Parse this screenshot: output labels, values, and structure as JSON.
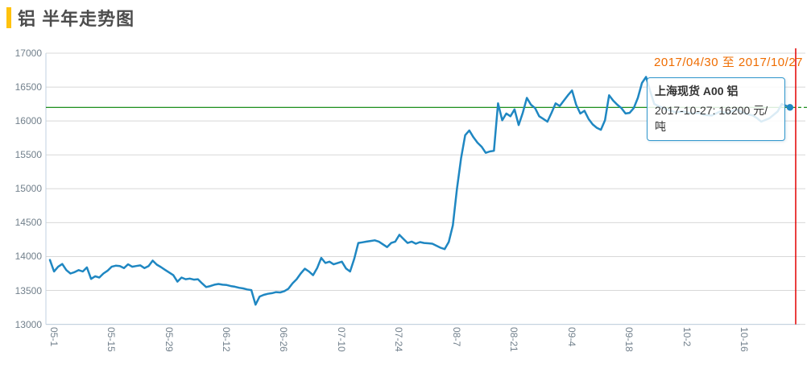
{
  "header": {
    "title": "铝 半年走势图",
    "accent_color": "#ffc20e"
  },
  "chart": {
    "date_range_label": "2017/04/30 至 2017/10/27",
    "tooltip": {
      "series_name": "上海现货 A00 铝",
      "value_line": "2017-10-27: 16200 元/吨"
    },
    "colors": {
      "line": "#1f87c2",
      "reference_line": "#008000",
      "cursor_line": "#e30000",
      "grid": "#d8d8d8",
      "axis": "#c0d0e0",
      "axis_text": "#72808c",
      "range_text": "#ef6c00",
      "tooltip_border": "#2f96cc",
      "title_text": "#4d4d4d"
    }
  },
  "chart_data": {
    "type": "line",
    "title": "铝 半年走势图",
    "series_name": "上海现货 A00 铝",
    "unit": "元/吨",
    "date_start": "2017-04-30",
    "date_end": "2017-10-27",
    "xlabel": "",
    "ylabel": "",
    "grid": true,
    "legend": false,
    "ylim": [
      13000,
      17000
    ],
    "yticks": [
      17000,
      16500,
      16000,
      15500,
      15000,
      14500,
      14000,
      13500,
      13000
    ],
    "xticks": [
      "05-1",
      "05-15",
      "05-29",
      "06-12",
      "06-26",
      "07-10",
      "07-24",
      "08-7",
      "08-21",
      "09-4",
      "09-18",
      "10-2",
      "10-16"
    ],
    "reference_value": 16200,
    "last_point": {
      "date": "2017-10-27",
      "value": 16200
    },
    "points": [
      [
        "04-30",
        13950
      ],
      [
        "05-01",
        13780
      ],
      [
        "05-02",
        13850
      ],
      [
        "05-03",
        13890
      ],
      [
        "05-04",
        13800
      ],
      [
        "05-05",
        13750
      ],
      [
        "05-06",
        13770
      ],
      [
        "05-07",
        13800
      ],
      [
        "05-08",
        13780
      ],
      [
        "05-09",
        13840
      ],
      [
        "05-10",
        13670
      ],
      [
        "05-11",
        13710
      ],
      [
        "05-12",
        13690
      ],
      [
        "05-13",
        13750
      ],
      [
        "05-14",
        13790
      ],
      [
        "05-15",
        13850
      ],
      [
        "05-16",
        13865
      ],
      [
        "05-17",
        13860
      ],
      [
        "05-18",
        13830
      ],
      [
        "05-19",
        13885
      ],
      [
        "05-20",
        13850
      ],
      [
        "05-21",
        13860
      ],
      [
        "05-22",
        13870
      ],
      [
        "05-23",
        13830
      ],
      [
        "05-24",
        13860
      ],
      [
        "05-25",
        13940
      ],
      [
        "05-26",
        13880
      ],
      [
        "05-27",
        13845
      ],
      [
        "05-28",
        13805
      ],
      [
        "05-29",
        13765
      ],
      [
        "05-30",
        13725
      ],
      [
        "05-31",
        13630
      ],
      [
        "06-01",
        13690
      ],
      [
        "06-02",
        13665
      ],
      [
        "06-03",
        13675
      ],
      [
        "06-04",
        13660
      ],
      [
        "06-05",
        13665
      ],
      [
        "06-06",
        13605
      ],
      [
        "06-07",
        13550
      ],
      [
        "06-08",
        13565
      ],
      [
        "06-09",
        13585
      ],
      [
        "06-10",
        13595
      ],
      [
        "06-11",
        13585
      ],
      [
        "06-12",
        13580
      ],
      [
        "06-13",
        13565
      ],
      [
        "06-14",
        13555
      ],
      [
        "06-15",
        13540
      ],
      [
        "06-16",
        13530
      ],
      [
        "06-17",
        13515
      ],
      [
        "06-18",
        13505
      ],
      [
        "06-19",
        13290
      ],
      [
        "06-20",
        13410
      ],
      [
        "06-21",
        13435
      ],
      [
        "06-22",
        13450
      ],
      [
        "06-23",
        13460
      ],
      [
        "06-24",
        13475
      ],
      [
        "06-25",
        13470
      ],
      [
        "06-26",
        13490
      ],
      [
        "06-27",
        13525
      ],
      [
        "06-28",
        13605
      ],
      [
        "06-29",
        13665
      ],
      [
        "06-30",
        13750
      ],
      [
        "07-01",
        13820
      ],
      [
        "07-02",
        13780
      ],
      [
        "07-03",
        13725
      ],
      [
        "07-04",
        13830
      ],
      [
        "07-05",
        13980
      ],
      [
        "07-06",
        13905
      ],
      [
        "07-07",
        13925
      ],
      [
        "07-08",
        13885
      ],
      [
        "07-09",
        13905
      ],
      [
        "07-10",
        13925
      ],
      [
        "07-11",
        13825
      ],
      [
        "07-12",
        13780
      ],
      [
        "07-13",
        13965
      ],
      [
        "07-14",
        14200
      ],
      [
        "07-15",
        14210
      ],
      [
        "07-16",
        14220
      ],
      [
        "07-17",
        14230
      ],
      [
        "07-18",
        14240
      ],
      [
        "07-19",
        14220
      ],
      [
        "07-20",
        14180
      ],
      [
        "07-21",
        14140
      ],
      [
        "07-22",
        14200
      ],
      [
        "07-23",
        14220
      ],
      [
        "07-24",
        14320
      ],
      [
        "07-25",
        14260
      ],
      [
        "07-26",
        14200
      ],
      [
        "07-27",
        14220
      ],
      [
        "07-28",
        14190
      ],
      [
        "07-29",
        14213
      ],
      [
        "07-30",
        14200
      ],
      [
        "07-31",
        14195
      ],
      [
        "08-01",
        14190
      ],
      [
        "08-02",
        14160
      ],
      [
        "08-03",
        14130
      ],
      [
        "08-04",
        14110
      ],
      [
        "08-05",
        14215
      ],
      [
        "08-06",
        14460
      ],
      [
        "08-07",
        15000
      ],
      [
        "08-08",
        15450
      ],
      [
        "08-09",
        15790
      ],
      [
        "08-10",
        15860
      ],
      [
        "08-11",
        15760
      ],
      [
        "08-12",
        15680
      ],
      [
        "08-13",
        15620
      ],
      [
        "08-14",
        15530
      ],
      [
        "08-15",
        15550
      ],
      [
        "08-16",
        15560
      ],
      [
        "08-17",
        16260
      ],
      [
        "08-18",
        16010
      ],
      [
        "08-19",
        16110
      ],
      [
        "08-20",
        16070
      ],
      [
        "08-21",
        16170
      ],
      [
        "08-22",
        15940
      ],
      [
        "08-23",
        16120
      ],
      [
        "08-24",
        16340
      ],
      [
        "08-25",
        16240
      ],
      [
        "08-26",
        16190
      ],
      [
        "08-27",
        16070
      ],
      [
        "08-28",
        16030
      ],
      [
        "08-29",
        15990
      ],
      [
        "08-30",
        16120
      ],
      [
        "08-31",
        16260
      ],
      [
        "09-01",
        16220
      ],
      [
        "09-02",
        16300
      ],
      [
        "09-03",
        16380
      ],
      [
        "09-04",
        16450
      ],
      [
        "09-05",
        16240
      ],
      [
        "09-06",
        16110
      ],
      [
        "09-07",
        16150
      ],
      [
        "09-08",
        16030
      ],
      [
        "09-09",
        15950
      ],
      [
        "09-10",
        15900
      ],
      [
        "09-11",
        15870
      ],
      [
        "09-12",
        16010
      ],
      [
        "09-13",
        16380
      ],
      [
        "09-14",
        16300
      ],
      [
        "09-15",
        16240
      ],
      [
        "09-16",
        16190
      ],
      [
        "09-17",
        16110
      ],
      [
        "09-18",
        16120
      ],
      [
        "09-19",
        16190
      ],
      [
        "09-20",
        16340
      ],
      [
        "09-21",
        16560
      ],
      [
        "09-22",
        16650
      ],
      [
        "09-23",
        16440
      ],
      [
        "09-24",
        16250
      ],
      [
        "09-25",
        16220
      ],
      [
        "09-27",
        16170
      ],
      [
        "09-29",
        16130
      ],
      [
        "10-01",
        16140
      ],
      [
        "10-03",
        16110
      ],
      [
        "10-05",
        16120
      ],
      [
        "10-06",
        16090
      ],
      [
        "10-08",
        16080
      ],
      [
        "10-10",
        16140
      ],
      [
        "10-12",
        16110
      ],
      [
        "10-13",
        16150
      ],
      [
        "10-14",
        16170
      ],
      [
        "10-16",
        16110
      ],
      [
        "10-18",
        16080
      ],
      [
        "10-19",
        16040
      ],
      [
        "10-20",
        15990
      ],
      [
        "10-22",
        16040
      ],
      [
        "10-24",
        16140
      ],
      [
        "10-25",
        16250
      ],
      [
        "10-27",
        16200
      ]
    ]
  }
}
